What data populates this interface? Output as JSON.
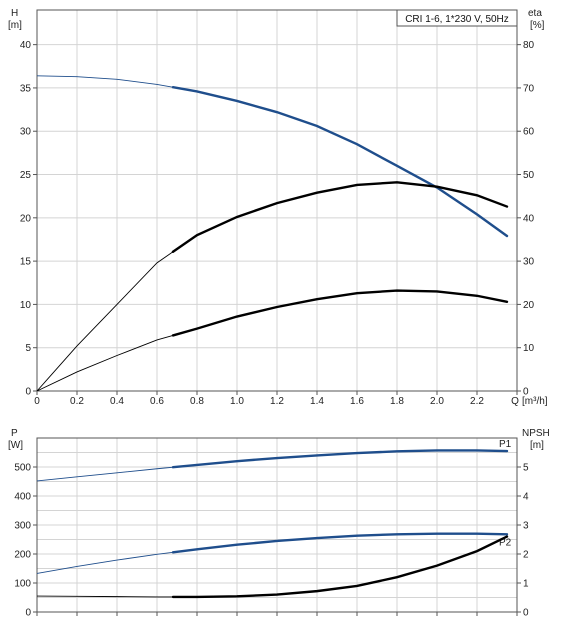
{
  "chart_data": [
    {
      "type": "line",
      "title": "CRI 1-6, 1*230 V, 50Hz",
      "xlabel": "Q [m³/h]",
      "ylabel_left": [
        "H",
        "[m]"
      ],
      "ylabel_right": [
        "eta",
        "[%]"
      ],
      "xlim": [
        0,
        2.4
      ],
      "xticks": [
        "0",
        "0.2",
        "0.4",
        "0.6",
        "0.8",
        "1.0",
        "1.2",
        "1.4",
        "1.6",
        "1.8",
        "2.0",
        "2.2",
        "Q"
      ],
      "ylim_left": [
        0,
        44
      ],
      "yticks_left": [
        "0",
        "5",
        "10",
        "15",
        "20",
        "25",
        "30",
        "35",
        "40"
      ],
      "ylim_right": [
        0,
        88
      ],
      "yticks_right": [
        "0",
        "10",
        "20",
        "30",
        "40",
        "50",
        "60",
        "70",
        "80"
      ],
      "grid": true,
      "series": [
        {
          "axis": "left",
          "color": "#1f4e8c",
          "operating_range": [
            0.68,
            2.35
          ],
          "x": [
            0,
            0.2,
            0.4,
            0.6,
            0.8,
            1.0,
            1.2,
            1.4,
            1.6,
            1.8,
            2.0,
            2.2,
            2.35
          ],
          "y": [
            36.4,
            36.3,
            36.0,
            35.4,
            34.6,
            33.5,
            32.2,
            30.6,
            28.5,
            26.0,
            23.5,
            20.4,
            17.9
          ]
        },
        {
          "axis": "right",
          "color": "#000000",
          "operating_range": [
            0.68,
            2.35
          ],
          "x": [
            0,
            0.2,
            0.4,
            0.6,
            0.8,
            1.0,
            1.2,
            1.4,
            1.6,
            1.8,
            2.0,
            2.2,
            2.35
          ],
          "y": [
            0,
            10.4,
            20.0,
            29.6,
            36.0,
            40.2,
            43.4,
            45.8,
            47.6,
            48.2,
            47.2,
            45.2,
            42.6
          ]
        },
        {
          "axis": "left",
          "color": "#000000",
          "operating_range": [
            0.68,
            2.35
          ],
          "x": [
            0,
            0.2,
            0.4,
            0.6,
            0.8,
            1.0,
            1.2,
            1.4,
            1.6,
            1.8,
            2.0,
            2.2,
            2.35
          ],
          "y": [
            0,
            2.2,
            4.1,
            5.9,
            7.2,
            8.6,
            9.7,
            10.6,
            11.3,
            11.6,
            11.5,
            11.0,
            10.3
          ]
        }
      ]
    },
    {
      "type": "line",
      "xlim": [
        0,
        2.4
      ],
      "ylabel_left": [
        "P",
        "[W]"
      ],
      "ylabel_right": [
        "NPSH",
        "[m]"
      ],
      "ylim_left": [
        0,
        600
      ],
      "yticks_left": [
        "0",
        "100",
        "200",
        "300",
        "400",
        "500"
      ],
      "ylim_right": [
        0,
        6
      ],
      "yticks_right": [
        "0",
        "1",
        "2",
        "3",
        "4",
        "5"
      ],
      "grid": true,
      "series": [
        {
          "name": "P1",
          "axis": "left",
          "color": "#1f4e8c",
          "operating_range": [
            0.68,
            2.35
          ],
          "x": [
            0,
            0.2,
            0.4,
            0.6,
            0.8,
            1.0,
            1.2,
            1.4,
            1.6,
            1.8,
            2.0,
            2.2,
            2.35
          ],
          "y": [
            452,
            466,
            480,
            494,
            507,
            520,
            531,
            540,
            548,
            554,
            557,
            557,
            555
          ]
        },
        {
          "name": "P2",
          "axis": "left",
          "color": "#1f4e8c",
          "operating_range": [
            0.68,
            2.35
          ],
          "x": [
            0,
            0.2,
            0.4,
            0.6,
            0.8,
            1.0,
            1.2,
            1.4,
            1.6,
            1.8,
            2.0,
            2.2,
            2.35
          ],
          "y": [
            133,
            157,
            179,
            199,
            216,
            232,
            245,
            255,
            263,
            268,
            270,
            270,
            268
          ]
        },
        {
          "axis": "right",
          "color": "#000000",
          "operating_range": [
            0.68,
            2.35
          ],
          "x": [
            0,
            0.2,
            0.4,
            0.6,
            0.8,
            1.0,
            1.2,
            1.4,
            1.6,
            1.8,
            2.0,
            2.2,
            2.35
          ],
          "y": [
            0.55,
            0.54,
            0.53,
            0.52,
            0.52,
            0.54,
            0.6,
            0.72,
            0.9,
            1.2,
            1.6,
            2.1,
            2.6
          ]
        }
      ]
    }
  ]
}
